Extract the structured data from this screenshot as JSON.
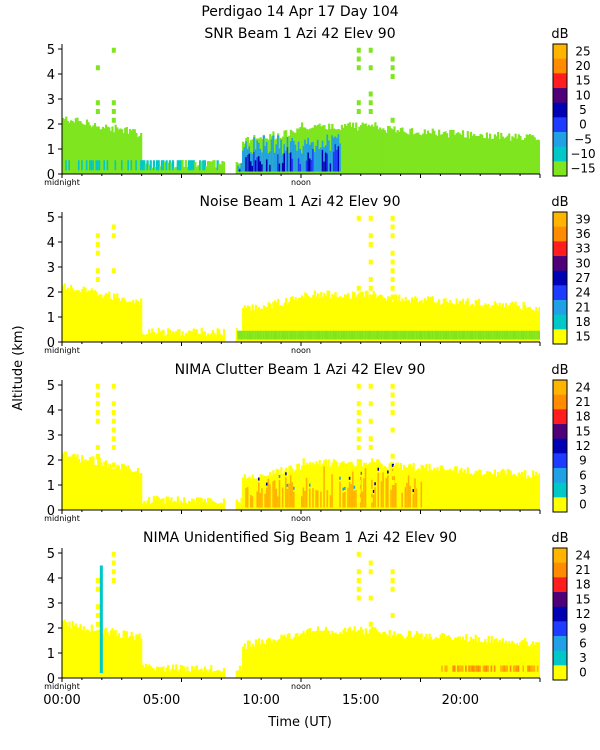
{
  "header": "Perdigao  14 Apr 17 Day 104",
  "colors": {
    "yellow": "#ffff00",
    "green": "#7fe51f",
    "teal": "#00c8c8",
    "cyan": "#21a0e6",
    "blue": "#1e3cff",
    "navy": "#0000b4",
    "purple": "#500078",
    "red": "#ff1e1e",
    "orange": "#ff8c00",
    "amber": "#ffb400"
  },
  "chart_data": [
    {
      "type": "heatmap",
      "title": "SNR Beam 1 Azi  42 Elev 90",
      "unit": "dB",
      "ylabel": "Altitude (km)",
      "yticks": [
        "0",
        "1",
        "2",
        "3",
        "4",
        "5"
      ],
      "ylim": [
        0,
        5.2
      ],
      "xlim": [
        0,
        24
      ],
      "marker_labels": [
        "midnight",
        "noon"
      ],
      "colorbar": [
        "25",
        "20",
        "15",
        "10",
        "5",
        "0",
        "−5",
        "−10",
        "−15"
      ],
      "colorbar_colors": [
        "#ffb400",
        "#ff8c00",
        "#ff1e1e",
        "#500078",
        "#0000b4",
        "#1e3cff",
        "#21a0e6",
        "#00c8c8",
        "#7fe51f"
      ]
    },
    {
      "type": "heatmap",
      "title": "Noise Beam 1 Azi  42 Elev 90",
      "unit": "dB",
      "ylabel": "Altitude (km)",
      "yticks": [
        "0",
        "1",
        "2",
        "3",
        "4",
        "5"
      ],
      "ylim": [
        0,
        5.2
      ],
      "xlim": [
        0,
        24
      ],
      "marker_labels": [
        "midnight",
        "noon"
      ],
      "colorbar": [
        "39",
        "36",
        "33",
        "30",
        "27",
        "24",
        "21",
        "18",
        "15"
      ],
      "colorbar_colors": [
        "#ffb400",
        "#ff8c00",
        "#ff1e1e",
        "#500078",
        "#0000b4",
        "#1e3cff",
        "#21a0e6",
        "#00c8c8",
        "#ffff00"
      ]
    },
    {
      "type": "heatmap",
      "title": "NIMA Clutter Beam 1 Azi  42 Elev 90",
      "unit": "dB",
      "ylabel": "Altitude (km)",
      "yticks": [
        "0",
        "1",
        "2",
        "3",
        "4",
        "5"
      ],
      "ylim": [
        0,
        5.2
      ],
      "xlim": [
        0,
        24
      ],
      "marker_labels": [
        "midnight",
        "noon"
      ],
      "colorbar": [
        "24",
        "21",
        "18",
        "15",
        "12",
        "9",
        "6",
        "3",
        "0"
      ],
      "colorbar_colors": [
        "#ffb400",
        "#ff8c00",
        "#ff1e1e",
        "#500078",
        "#0000b4",
        "#1e3cff",
        "#21a0e6",
        "#00c8c8",
        "#ffff00"
      ]
    },
    {
      "type": "heatmap",
      "title": "NIMA Unidentified Sig Beam 1 Azi  42 Elev 90",
      "unit": "dB",
      "ylabel": "Altitude (km)",
      "yticks": [
        "0",
        "1",
        "2",
        "3",
        "4",
        "5"
      ],
      "ylim": [
        0,
        5.2
      ],
      "xlim": [
        0,
        24
      ],
      "marker_labels": [
        "midnight",
        "noon"
      ],
      "colorbar": [
        "24",
        "21",
        "18",
        "15",
        "12",
        "9",
        "6",
        "3",
        "0"
      ],
      "colorbar_colors": [
        "#ffb400",
        "#ff8c00",
        "#ff1e1e",
        "#500078",
        "#0000b4",
        "#1e3cff",
        "#21a0e6",
        "#00c8c8",
        "#ffff00"
      ]
    }
  ],
  "ylabel_shared": "Altitude (km)",
  "xticks": [
    "00:00",
    "05:00",
    "10:00",
    "15:00",
    "20:00"
  ],
  "xtick_values": [
    0,
    5,
    10,
    15,
    20
  ],
  "xlabel": "Time (UT)"
}
